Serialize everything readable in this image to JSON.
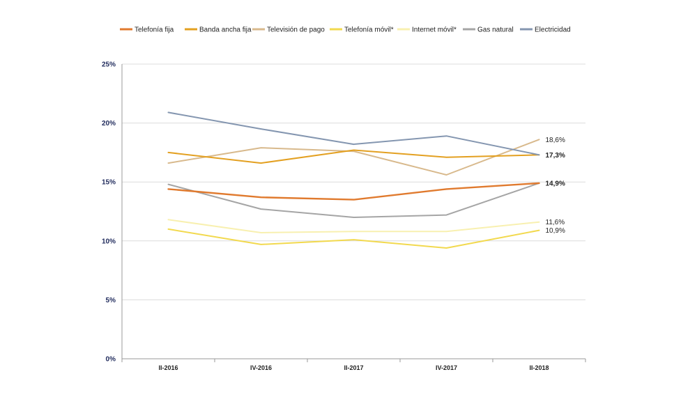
{
  "chart_data": {
    "type": "line",
    "title": "",
    "xlabel": "",
    "ylabel": "",
    "y_unit": "%",
    "ylim": [
      0,
      25
    ],
    "y_ticks": [
      0,
      5,
      10,
      15,
      20,
      25
    ],
    "y_tick_labels": [
      "0%",
      "5%",
      "10%",
      "15%",
      "20%",
      "25%"
    ],
    "grid": true,
    "legend_position": "top",
    "categories": [
      "II-2016",
      "IV-2016",
      "II-2017",
      "IV-2017",
      "II-2018"
    ],
    "series": [
      {
        "name": "Telefonía fija",
        "color": "#e07a2e",
        "values": [
          14.4,
          13.7,
          13.5,
          14.4,
          14.9
        ]
      },
      {
        "name": "Banda ancha fija",
        "color": "#e3a021",
        "values": [
          17.5,
          16.6,
          17.7,
          17.1,
          17.3
        ]
      },
      {
        "name": "Televisión de pago",
        "color": "#d8b98c",
        "values": [
          16.6,
          17.9,
          17.6,
          15.6,
          18.6
        ]
      },
      {
        "name": "Telefonía móvil*",
        "color": "#f2d94e",
        "values": [
          11.0,
          9.7,
          10.1,
          9.4,
          10.9
        ]
      },
      {
        "name": "Internet móvil*",
        "color": "#f8f0b0",
        "values": [
          11.8,
          10.7,
          10.8,
          10.8,
          11.6
        ]
      },
      {
        "name": "Gas natural",
        "color": "#a5a5a5",
        "values": [
          14.8,
          12.7,
          12.0,
          12.2,
          14.9
        ]
      },
      {
        "name": "Electricidad",
        "color": "#8496b0",
        "values": [
          20.9,
          19.5,
          18.2,
          18.9,
          17.3
        ]
      }
    ],
    "end_labels": [
      {
        "text": "18,6%",
        "value": 18.6,
        "bold": false
      },
      {
        "text": "17,3%",
        "value": 17.3,
        "bold": true
      },
      {
        "text": "14,9%",
        "value": 14.9,
        "bold": true
      },
      {
        "text": "11,6%",
        "value": 11.6,
        "bold": false
      },
      {
        "text": "10,9%",
        "value": 10.9,
        "bold": false
      }
    ]
  }
}
